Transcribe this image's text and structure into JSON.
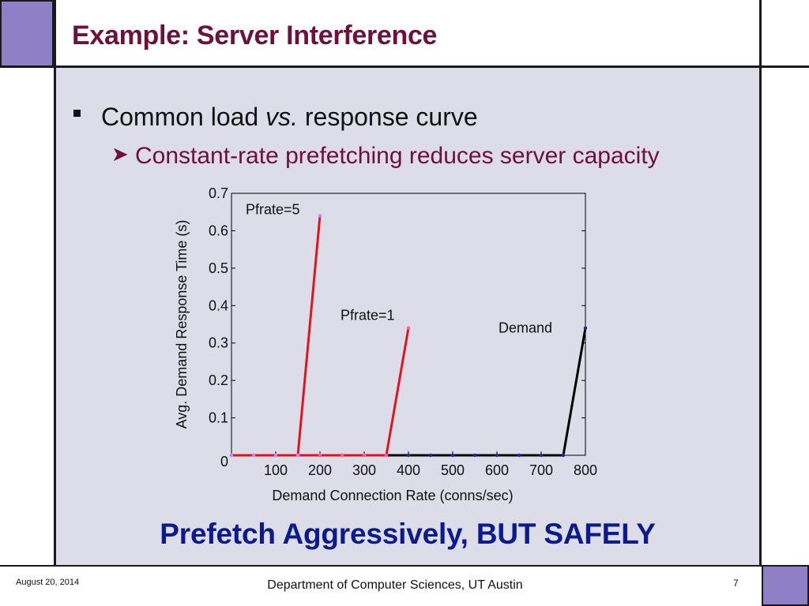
{
  "slide": {
    "title": "Example: Server Interference",
    "bullet": {
      "pre": "Common load ",
      "italic": "vs.",
      "post": " response curve"
    },
    "sub_bullet": "Constant-rate prefetching reduces server capacity",
    "tagline": "Prefetch Aggressively, BUT SAFELY"
  },
  "footer": {
    "date": "August 20, 2014",
    "department": "Department of Computer Sciences, UT Austin",
    "page": "7"
  },
  "colors": {
    "title": "#6e0f3c",
    "tagline": "#0b1a8c",
    "corner": "#8f7fc6",
    "content_bg": "#dcdde9"
  },
  "chart_data": {
    "type": "line",
    "xlabel": "Demand Connection Rate (conns/sec)",
    "ylabel": "Avg. Demand Response Time (s)",
    "xlim": [
      0,
      800
    ],
    "ylim": [
      0,
      0.7
    ],
    "x_ticks": [
      100,
      200,
      300,
      400,
      500,
      600,
      700,
      800
    ],
    "y_ticks": [
      0,
      0.1,
      0.2,
      0.3,
      0.4,
      0.5,
      0.6,
      0.7
    ],
    "grid": false,
    "series": [
      {
        "name": "Demand",
        "color": "#000000",
        "x": [
          0,
          50,
          100,
          150,
          200,
          250,
          300,
          350,
          400,
          450,
          500,
          550,
          600,
          650,
          700,
          750,
          800
        ],
        "y": [
          0,
          0,
          0,
          0,
          0,
          0,
          0,
          0,
          0,
          0,
          0,
          0,
          0,
          0,
          0,
          0,
          0.34
        ]
      },
      {
        "name": "Pfrate=1",
        "color": "#e0141e",
        "x": [
          0,
          50,
          100,
          150,
          200,
          250,
          300,
          350,
          400
        ],
        "y": [
          0,
          0,
          0,
          0,
          0,
          0,
          0,
          0,
          0.34
        ]
      },
      {
        "name": "Pfrate=5",
        "color": "#e0141e",
        "x": [
          0,
          50,
          100,
          150,
          200
        ],
        "y": [
          0,
          0,
          0,
          0,
          0.64
        ]
      }
    ]
  }
}
